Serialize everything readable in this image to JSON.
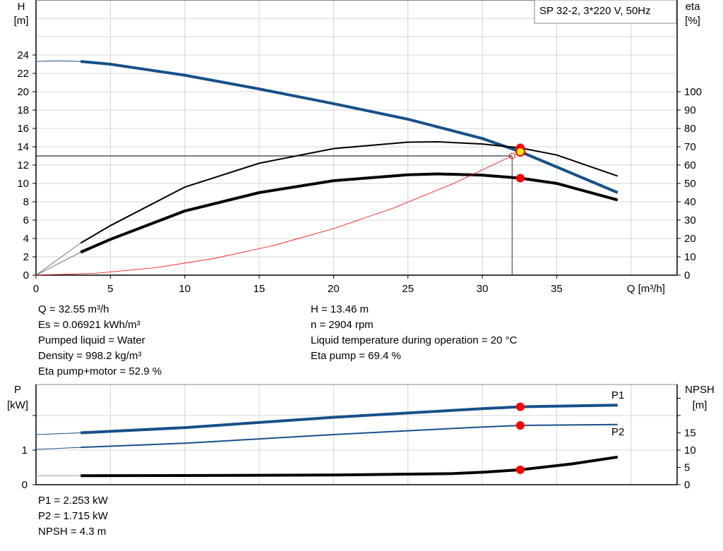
{
  "chart_data": [
    {
      "type": "line",
      "title": "SP 32-2, 3*220 V, 50Hz",
      "xlabel": "Q [m³/h]",
      "ylabel": "H\n[m]",
      "ylabel_parts": [
        "H",
        "[m]"
      ],
      "y2label_parts": [
        "eta",
        "[%]"
      ],
      "xlim": [
        0,
        43
      ],
      "ylim": [
        0,
        30
      ],
      "y2lim": [
        0,
        100
      ],
      "xticks": [
        0,
        5,
        10,
        15,
        20,
        25,
        30,
        35
      ],
      "yticks": [
        0,
        2,
        4,
        6,
        8,
        10,
        12,
        14,
        16,
        18,
        20,
        22,
        24
      ],
      "y2ticks": [
        0,
        10,
        20,
        30,
        40,
        50,
        60,
        70,
        80,
        90,
        100
      ],
      "grid": true,
      "series": [
        {
          "id": "head",
          "axis": "left",
          "color": "#17508a",
          "x": [
            0,
            1,
            2,
            3,
            5,
            10,
            15,
            20,
            25,
            30,
            32.55,
            35,
            39.1
          ],
          "y": [
            23.3,
            23.35,
            23.35,
            23.3,
            23.0,
            21.8,
            20.3,
            18.7,
            17.0,
            14.9,
            13.46,
            11.8,
            9.0
          ]
        },
        {
          "id": "eta-pump",
          "axis": "right",
          "color": "#000000",
          "x": [
            0,
            3,
            5,
            10,
            15,
            20,
            25,
            27,
            30,
            32.55,
            35,
            39.1
          ],
          "y": [
            0,
            17.5,
            27,
            48,
            61,
            69,
            72.5,
            72.7,
            71.5,
            69.4,
            65.5,
            54
          ]
        },
        {
          "id": "eta-pump-motor",
          "axis": "right",
          "color": "#000000",
          "x": [
            0,
            3,
            5,
            10,
            15,
            20,
            25,
            27,
            30,
            32.55,
            35,
            39.1
          ],
          "y": [
            0,
            12.5,
            19.5,
            35,
            45,
            51.5,
            54.7,
            55.2,
            54.5,
            52.9,
            50,
            41
          ]
        },
        {
          "id": "system-curve",
          "axis": "left",
          "color": "#ff0000",
          "x": [
            0,
            4,
            8,
            12,
            16,
            20,
            24,
            28,
            32
          ],
          "y": [
            0,
            0.2,
            0.81,
            1.83,
            3.25,
            5.08,
            7.31,
            9.95,
            13
          ]
        }
      ],
      "operating_point": {
        "q": 32.55,
        "h": 13.46,
        "eta_pump": 69.4,
        "eta_pump_motor": 52.9
      },
      "duty_point": {
        "q": 32,
        "h": 13
      }
    },
    {
      "type": "line",
      "ylabel_parts": [
        "P",
        "[kW]"
      ],
      "y2label_parts": [
        "NPSH",
        "[m]"
      ],
      "xlim": [
        0,
        43
      ],
      "ylim": [
        0,
        2.9
      ],
      "y2lim": [
        0,
        29
      ],
      "yticks": [
        0,
        1
      ],
      "y2ticks": [
        0,
        5,
        10,
        15
      ],
      "grid": true,
      "series": [
        {
          "name": "P1",
          "axis": "left",
          "color": "#17508a",
          "x": [
            0,
            3,
            10,
            20,
            30,
            32.55,
            39.1
          ],
          "y": [
            1.45,
            1.5,
            1.65,
            1.95,
            2.2,
            2.253,
            2.3
          ]
        },
        {
          "name": "P2",
          "axis": "left",
          "color": "#17508a",
          "x": [
            0,
            3,
            10,
            20,
            30,
            32.55,
            39.1
          ],
          "y": [
            1.02,
            1.08,
            1.2,
            1.45,
            1.67,
            1.715,
            1.74
          ]
        },
        {
          "id": "npsh",
          "axis": "right",
          "color": "#000000",
          "x": [
            0,
            3,
            10,
            20,
            28,
            30,
            32.55,
            36,
            39.1
          ],
          "y": [
            2.6,
            2.6,
            2.65,
            2.8,
            3.2,
            3.6,
            4.3,
            6.0,
            8.0
          ]
        }
      ],
      "operating_point": {
        "q": 32.55,
        "p1": 2.253,
        "p2": 1.715,
        "npsh": 4.3
      }
    }
  ],
  "results_left": [
    "Q = 32.55 m³/h",
    "Es = 0.06921 kWh/m³",
    "Pumped liquid = Water",
    "Density = 998.2 kg/m³",
    "Eta pump+motor = 52.9 %"
  ],
  "results_right": [
    "H = 13.46 m",
    "n = 2904 rpm",
    "Liquid temperature during operation = 20 °C",
    "Eta pump = 69.4 %"
  ],
  "results_bottom": [
    "P1 = 2.253 kW",
    "P2 = 1.715 kW",
    "NPSH = 4.3 m"
  ]
}
